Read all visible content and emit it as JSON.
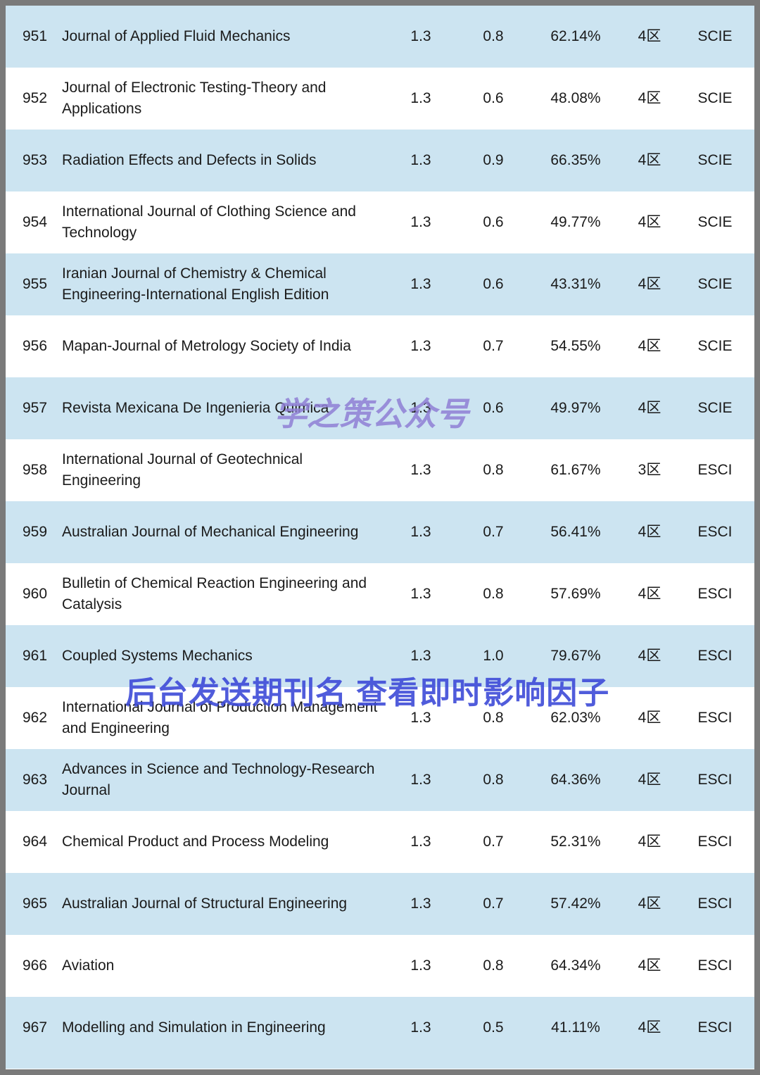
{
  "watermarks": {
    "center": "学之策公众号",
    "lower": "后台发送期刊名 查看即时影响因子"
  },
  "colors": {
    "row_alt": "#cce4f1",
    "row_base": "#ffffff",
    "frame": "#7a7a7a",
    "text": "#1a1a1a",
    "watermark_center": "#9080d5",
    "watermark_lower": "#3e4bd8"
  },
  "table": {
    "rows": [
      {
        "rank": "951",
        "name": "Journal of Applied Fluid Mechanics",
        "v1": "1.3",
        "v2": "0.8",
        "percent": "62.14%",
        "tier": "4区",
        "db": "SCIE"
      },
      {
        "rank": "952",
        "name": "Journal of Electronic Testing-Theory and Applications",
        "v1": "1.3",
        "v2": "0.6",
        "percent": "48.08%",
        "tier": "4区",
        "db": "SCIE"
      },
      {
        "rank": "953",
        "name": "Radiation Effects and Defects in Solids",
        "v1": "1.3",
        "v2": "0.9",
        "percent": "66.35%",
        "tier": "4区",
        "db": "SCIE"
      },
      {
        "rank": "954",
        "name": "International Journal of Clothing Science and Technology",
        "v1": "1.3",
        "v2": "0.6",
        "percent": "49.77%",
        "tier": "4区",
        "db": "SCIE"
      },
      {
        "rank": "955",
        "name": "Iranian Journal of Chemistry & Chemical Engineering-International English Edition",
        "v1": "1.3",
        "v2": "0.6",
        "percent": "43.31%",
        "tier": "4区",
        "db": "SCIE"
      },
      {
        "rank": "956",
        "name": "Mapan-Journal of Metrology Society of India",
        "v1": "1.3",
        "v2": "0.7",
        "percent": "54.55%",
        "tier": "4区",
        "db": "SCIE"
      },
      {
        "rank": "957",
        "name": "Revista Mexicana De Ingenieria Quimica",
        "v1": "1.3",
        "v2": "0.6",
        "percent": "49.97%",
        "tier": "4区",
        "db": "SCIE"
      },
      {
        "rank": "958",
        "name": "International Journal of Geotechnical Engineering",
        "v1": "1.3",
        "v2": "0.8",
        "percent": "61.67%",
        "tier": "3区",
        "db": "ESCI"
      },
      {
        "rank": "959",
        "name": "Australian Journal of Mechanical Engineering",
        "v1": "1.3",
        "v2": "0.7",
        "percent": "56.41%",
        "tier": "4区",
        "db": "ESCI"
      },
      {
        "rank": "960",
        "name": "Bulletin of Chemical Reaction Engineering and Catalysis",
        "v1": "1.3",
        "v2": "0.8",
        "percent": "57.69%",
        "tier": "4区",
        "db": "ESCI"
      },
      {
        "rank": "961",
        "name": "Coupled Systems Mechanics",
        "v1": "1.3",
        "v2": "1.0",
        "percent": "79.67%",
        "tier": "4区",
        "db": "ESCI"
      },
      {
        "rank": "962",
        "name": "International Journal of Production Management and Engineering",
        "v1": "1.3",
        "v2": "0.8",
        "percent": "62.03%",
        "tier": "4区",
        "db": "ESCI"
      },
      {
        "rank": "963",
        "name": "Advances in Science and Technology-Research Journal",
        "v1": "1.3",
        "v2": "0.8",
        "percent": "64.36%",
        "tier": "4区",
        "db": "ESCI"
      },
      {
        "rank": "964",
        "name": "Chemical Product and Process Modeling",
        "v1": "1.3",
        "v2": "0.7",
        "percent": "52.31%",
        "tier": "4区",
        "db": "ESCI"
      },
      {
        "rank": "965",
        "name": "Australian Journal of Structural Engineering",
        "v1": "1.3",
        "v2": "0.7",
        "percent": "57.42%",
        "tier": "4区",
        "db": "ESCI"
      },
      {
        "rank": "966",
        "name": "Aviation",
        "v1": "1.3",
        "v2": "0.8",
        "percent": "64.34%",
        "tier": "4区",
        "db": "ESCI"
      },
      {
        "rank": "967",
        "name": "Modelling and Simulation in Engineering",
        "v1": "1.3",
        "v2": "0.5",
        "percent": "41.11%",
        "tier": "4区",
        "db": "ESCI"
      }
    ]
  }
}
